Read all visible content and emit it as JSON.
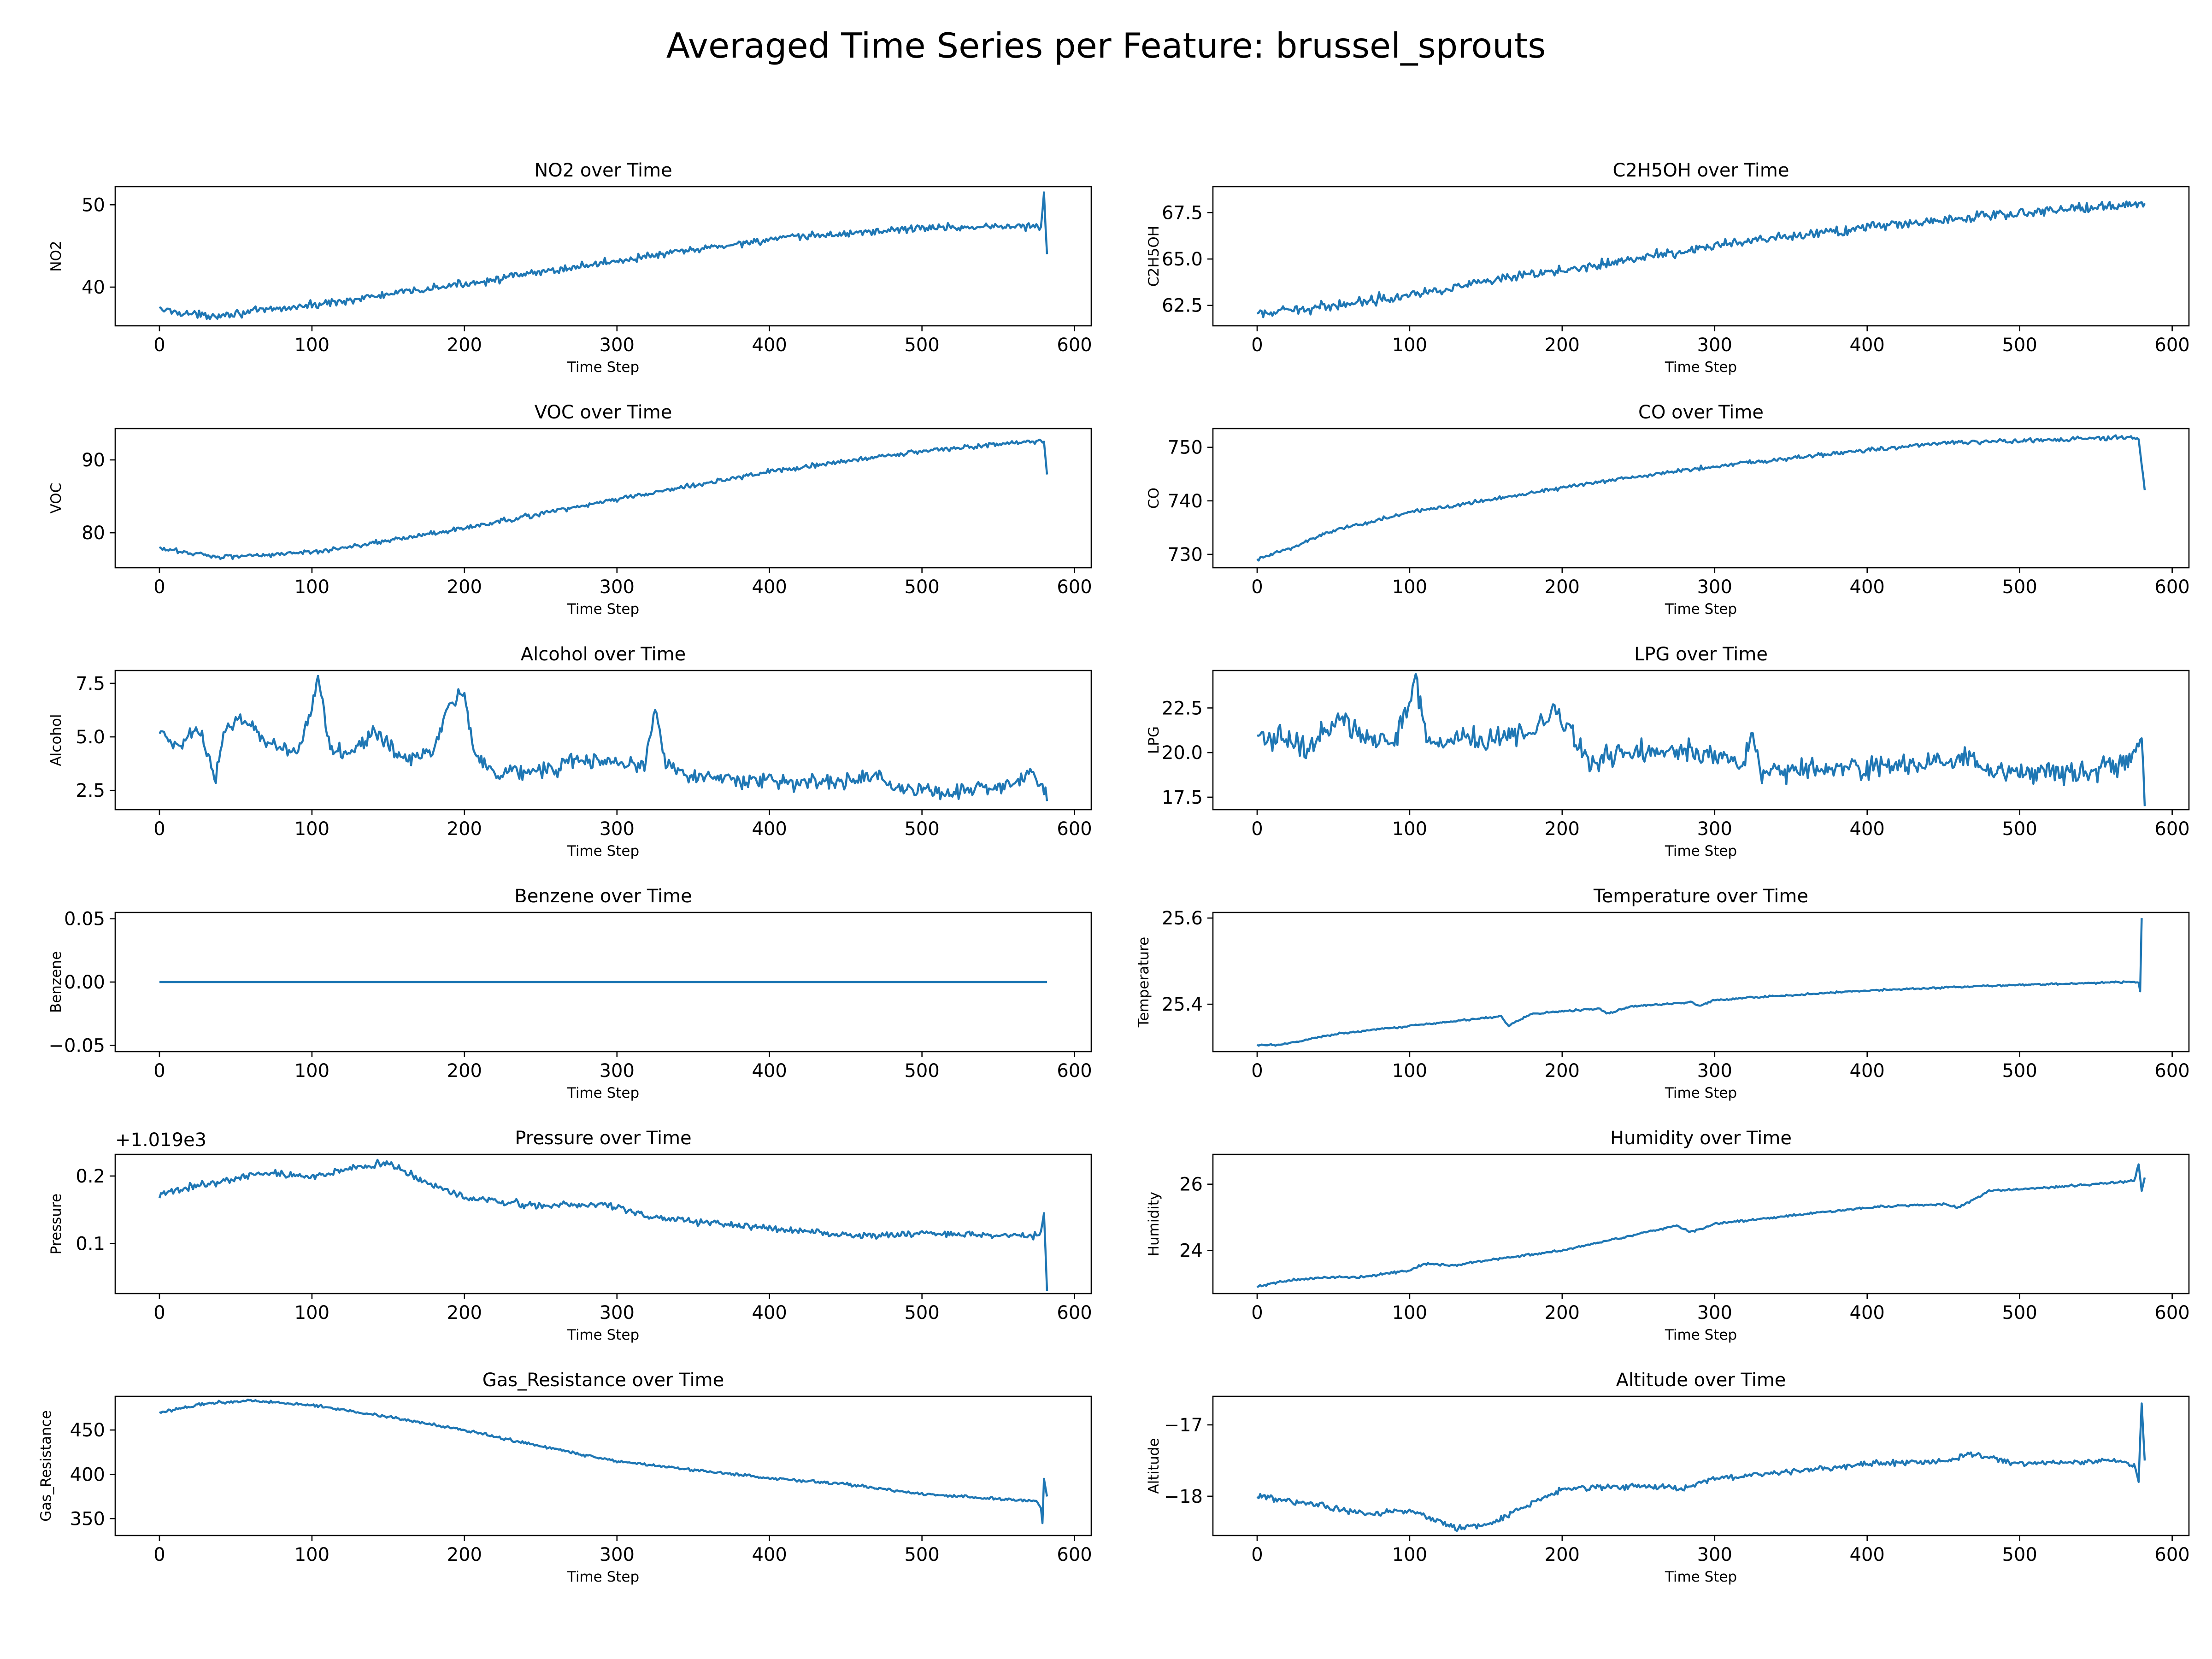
{
  "figure_title": "Averaged Time Series per Feature: brussel_sprouts",
  "colors": {
    "line": "#1f77b4",
    "axes": "#000000",
    "background": "#ffffff"
  },
  "chart_data": [
    {
      "type": "line",
      "title": "NO2 over Time",
      "xlabel": "Time Step",
      "ylabel": "NO2",
      "xlim": [
        -29,
        611
      ],
      "ylim": [
        35.3,
        52.2
      ],
      "xticks": [
        0,
        100,
        200,
        300,
        400,
        500,
        600
      ],
      "yticks": [
        40,
        50
      ],
      "xtick_labels": [
        "0",
        "100",
        "200",
        "300",
        "400",
        "500",
        "600"
      ],
      "ytick_labels": [
        "40",
        "50"
      ],
      "trend": [
        [
          0,
          37.3
        ],
        [
          30,
          36.5
        ],
        [
          60,
          37.0
        ],
        [
          100,
          37.8
        ],
        [
          200,
          40.4
        ],
        [
          300,
          43.2
        ],
        [
          400,
          45.8
        ],
        [
          500,
          47.2
        ],
        [
          560,
          47.4
        ],
        [
          578,
          47.3
        ],
        [
          580,
          51.5
        ],
        [
          582,
          44.0
        ]
      ],
      "noise": 0.35
    },
    {
      "type": "line",
      "title": "C2H5OH over Time",
      "xlabel": "Time Step",
      "ylabel": "C2H5OH",
      "xlim": [
        -29,
        611
      ],
      "ylim": [
        61.4,
        68.9
      ],
      "xticks": [
        0,
        100,
        200,
        300,
        400,
        500,
        600
      ],
      "yticks": [
        62.5,
        65.0,
        67.5
      ],
      "xtick_labels": [
        "0",
        "100",
        "200",
        "300",
        "400",
        "500",
        "600"
      ],
      "ytick_labels": [
        "62.5",
        "65.0",
        "67.5"
      ],
      "trend": [
        [
          0,
          62.0
        ],
        [
          50,
          62.5
        ],
        [
          100,
          63.1
        ],
        [
          200,
          64.4
        ],
        [
          300,
          65.7
        ],
        [
          400,
          66.7
        ],
        [
          500,
          67.5
        ],
        [
          582,
          68.0
        ]
      ],
      "noise": 0.2
    },
    {
      "type": "line",
      "title": "VOC over Time",
      "xlabel": "Time Step",
      "ylabel": "VOC",
      "xlim": [
        -29,
        611
      ],
      "ylim": [
        75.2,
        94.3
      ],
      "xticks": [
        0,
        100,
        200,
        300,
        400,
        500,
        600
      ],
      "yticks": [
        80,
        90
      ],
      "xtick_labels": [
        "0",
        "100",
        "200",
        "300",
        "400",
        "500",
        "600"
      ],
      "ytick_labels": [
        "80",
        "90"
      ],
      "trend": [
        [
          0,
          77.8
        ],
        [
          40,
          76.7
        ],
        [
          100,
          77.3
        ],
        [
          200,
          80.6
        ],
        [
          300,
          84.6
        ],
        [
          400,
          88.4
        ],
        [
          500,
          91.2
        ],
        [
          575,
          92.6
        ],
        [
          580,
          92.5
        ],
        [
          582,
          88.0
        ]
      ],
      "noise": 0.25
    },
    {
      "type": "line",
      "title": "CO over Time",
      "xlabel": "Time Step",
      "ylabel": "CO",
      "xlim": [
        -29,
        611
      ],
      "ylim": [
        727.5,
        753.5
      ],
      "xticks": [
        0,
        100,
        200,
        300,
        400,
        500,
        600
      ],
      "yticks": [
        730,
        740,
        750
      ],
      "xtick_labels": [
        "0",
        "100",
        "200",
        "300",
        "400",
        "500",
        "600"
      ],
      "ytick_labels": [
        "730",
        "740",
        "750"
      ],
      "trend": [
        [
          0,
          729.0
        ],
        [
          20,
          731.0
        ],
        [
          50,
          734.5
        ],
        [
          100,
          737.8
        ],
        [
          200,
          742.5
        ],
        [
          300,
          746.5
        ],
        [
          400,
          749.5
        ],
        [
          450,
          750.8
        ],
        [
          500,
          751.2
        ],
        [
          570,
          751.8
        ],
        [
          578,
          751.5
        ],
        [
          582,
          742.0
        ]
      ],
      "noise": 0.3
    },
    {
      "type": "line",
      "title": "Alcohol over Time",
      "xlabel": "Time Step",
      "ylabel": "Alcohol",
      "xlim": [
        -29,
        611
      ],
      "ylim": [
        1.6,
        8.1
      ],
      "xticks": [
        0,
        100,
        200,
        300,
        400,
        500,
        600
      ],
      "yticks": [
        2.5,
        5.0,
        7.5
      ],
      "xtick_labels": [
        "0",
        "100",
        "200",
        "300",
        "400",
        "500",
        "600"
      ],
      "ytick_labels": [
        "2.5",
        "5.0",
        "7.5"
      ],
      "trend": [
        [
          0,
          5.2
        ],
        [
          10,
          4.5
        ],
        [
          25,
          5.5
        ],
        [
          32,
          4.2
        ],
        [
          37,
          3.0
        ],
        [
          42,
          5.3
        ],
        [
          55,
          5.8
        ],
        [
          70,
          4.8
        ],
        [
          90,
          4.3
        ],
        [
          98,
          5.8
        ],
        [
          104,
          7.8
        ],
        [
          112,
          4.5
        ],
        [
          125,
          4.3
        ],
        [
          140,
          5.2
        ],
        [
          160,
          4.0
        ],
        [
          180,
          4.3
        ],
        [
          190,
          6.5
        ],
        [
          200,
          7.0
        ],
        [
          207,
          4.2
        ],
        [
          220,
          3.3
        ],
        [
          260,
          3.5
        ],
        [
          270,
          3.9
        ],
        [
          300,
          3.8
        ],
        [
          318,
          3.6
        ],
        [
          325,
          6.3
        ],
        [
          332,
          3.8
        ],
        [
          350,
          3.2
        ],
        [
          400,
          2.9
        ],
        [
          450,
          2.9
        ],
        [
          470,
          3.2
        ],
        [
          480,
          2.7
        ],
        [
          520,
          2.4
        ],
        [
          560,
          2.8
        ],
        [
          572,
          3.4
        ],
        [
          578,
          2.8
        ],
        [
          582,
          2.0
        ]
      ],
      "noise": 0.28
    },
    {
      "type": "line",
      "title": "LPG over Time",
      "xlabel": "Time Step",
      "ylabel": "LPG",
      "xlim": [
        -29,
        611
      ],
      "ylim": [
        16.8,
        24.6
      ],
      "xticks": [
        0,
        100,
        200,
        300,
        400,
        500,
        600
      ],
      "yticks": [
        17.5,
        20.0,
        22.5
      ],
      "xtick_labels": [
        "0",
        "100",
        "200",
        "300",
        "400",
        "500",
        "600"
      ],
      "ytick_labels": [
        "17.5",
        "20.0",
        "22.5"
      ],
      "trend": [
        [
          0,
          20.7
        ],
        [
          20,
          20.9
        ],
        [
          32,
          20.0
        ],
        [
          40,
          21.0
        ],
        [
          55,
          22.0
        ],
        [
          70,
          20.8
        ],
        [
          90,
          20.6
        ],
        [
          98,
          22.5
        ],
        [
          104,
          24.0
        ],
        [
          112,
          20.5
        ],
        [
          130,
          20.7
        ],
        [
          150,
          20.8
        ],
        [
          180,
          21.0
        ],
        [
          195,
          22.3
        ],
        [
          205,
          21.5
        ],
        [
          215,
          19.5
        ],
        [
          240,
          20.0
        ],
        [
          270,
          20.3
        ],
        [
          300,
          19.8
        ],
        [
          320,
          19.5
        ],
        [
          325,
          21.3
        ],
        [
          330,
          18.8
        ],
        [
          360,
          19.1
        ],
        [
          400,
          19.1
        ],
        [
          440,
          19.4
        ],
        [
          460,
          19.7
        ],
        [
          480,
          18.9
        ],
        [
          540,
          18.8
        ],
        [
          570,
          19.4
        ],
        [
          577,
          20.5
        ],
        [
          580,
          20.8
        ],
        [
          582,
          17.0
        ]
      ],
      "noise": 0.48
    },
    {
      "type": "line",
      "title": "Benzene over Time",
      "xlabel": "Time Step",
      "ylabel": "Benzene",
      "xlim": [
        -29,
        611
      ],
      "ylim": [
        -0.055,
        0.055
      ],
      "xticks": [
        0,
        100,
        200,
        300,
        400,
        500,
        600
      ],
      "yticks": [
        -0.05,
        0.0,
        0.05
      ],
      "xtick_labels": [
        "0",
        "100",
        "200",
        "300",
        "400",
        "500",
        "600"
      ],
      "ytick_labels": [
        "−0.05",
        "0.00",
        "0.05"
      ],
      "trend": [
        [
          0,
          0.0
        ],
        [
          582,
          0.0
        ]
      ],
      "noise": 0
    },
    {
      "type": "line",
      "title": "Temperature over Time",
      "xlabel": "Time Step",
      "ylabel": "Temperature",
      "xlim": [
        -29,
        611
      ],
      "ylim": [
        25.29,
        25.613
      ],
      "xticks": [
        0,
        100,
        200,
        300,
        400,
        500,
        600
      ],
      "yticks": [
        25.4,
        25.6
      ],
      "xtick_labels": [
        "0",
        "100",
        "200",
        "300",
        "400",
        "500",
        "600"
      ],
      "ytick_labels": [
        "25.4",
        "25.6"
      ],
      "trend": [
        [
          0,
          25.305
        ],
        [
          15,
          25.305
        ],
        [
          50,
          25.33
        ],
        [
          100,
          25.35
        ],
        [
          160,
          25.372
        ],
        [
          165,
          25.35
        ],
        [
          180,
          25.378
        ],
        [
          225,
          25.39
        ],
        [
          230,
          25.378
        ],
        [
          245,
          25.395
        ],
        [
          285,
          25.405
        ],
        [
          290,
          25.395
        ],
        [
          300,
          25.41
        ],
        [
          400,
          25.432
        ],
        [
          500,
          25.445
        ],
        [
          575,
          25.452
        ],
        [
          578,
          25.45
        ],
        [
          579,
          25.43
        ],
        [
          580,
          25.6
        ]
      ],
      "noise": 0.0015
    },
    {
      "type": "line",
      "title": "Pressure over Time",
      "xlabel": "Time Step",
      "ylabel": "Pressure",
      "offset_text": "+1.019e3",
      "xlim": [
        -29,
        611
      ],
      "ylim": [
        0.026,
        0.232
      ],
      "xticks": [
        0,
        100,
        200,
        300,
        400,
        500,
        600
      ],
      "yticks": [
        0.1,
        0.2
      ],
      "xtick_labels": [
        "0",
        "100",
        "200",
        "300",
        "400",
        "500",
        "600"
      ],
      "ytick_labels": [
        "0.1",
        "0.2"
      ],
      "trend": [
        [
          0,
          0.172
        ],
        [
          30,
          0.188
        ],
        [
          70,
          0.205
        ],
        [
          100,
          0.198
        ],
        [
          130,
          0.215
        ],
        [
          150,
          0.218
        ],
        [
          175,
          0.19
        ],
        [
          200,
          0.168
        ],
        [
          250,
          0.155
        ],
        [
          290,
          0.16
        ],
        [
          320,
          0.14
        ],
        [
          400,
          0.122
        ],
        [
          460,
          0.11
        ],
        [
          500,
          0.115
        ],
        [
          575,
          0.112
        ],
        [
          578,
          0.118
        ],
        [
          580,
          0.145
        ],
        [
          582,
          0.03
        ]
      ],
      "noise": 0.004
    },
    {
      "type": "line",
      "title": "Humidity over Time",
      "xlabel": "Time Step",
      "ylabel": "Humidity",
      "xlim": [
        -29,
        611
      ],
      "ylim": [
        22.7,
        26.9
      ],
      "xticks": [
        0,
        100,
        200,
        300,
        400,
        500,
        600
      ],
      "yticks": [
        24,
        26
      ],
      "xtick_labels": [
        "0",
        "100",
        "200",
        "300",
        "400",
        "500",
        "600"
      ],
      "ytick_labels": [
        "24",
        "26"
      ],
      "trend": [
        [
          0,
          22.9
        ],
        [
          20,
          23.1
        ],
        [
          50,
          23.2
        ],
        [
          70,
          23.2
        ],
        [
          100,
          23.4
        ],
        [
          110,
          23.6
        ],
        [
          130,
          23.55
        ],
        [
          150,
          23.7
        ],
        [
          200,
          24.0
        ],
        [
          240,
          24.4
        ],
        [
          275,
          24.75
        ],
        [
          285,
          24.55
        ],
        [
          300,
          24.8
        ],
        [
          350,
          25.05
        ],
        [
          400,
          25.3
        ],
        [
          450,
          25.4
        ],
        [
          460,
          25.3
        ],
        [
          480,
          25.8
        ],
        [
          500,
          25.85
        ],
        [
          550,
          26.0
        ],
        [
          575,
          26.1
        ],
        [
          578,
          26.6
        ],
        [
          580,
          25.8
        ],
        [
          582,
          26.2
        ]
      ],
      "noise": 0.025
    },
    {
      "type": "line",
      "title": "Gas_Resistance over Time",
      "xlabel": "Time Step",
      "ylabel": "Gas_Resistance",
      "xlim": [
        -29,
        611
      ],
      "ylim": [
        331,
        488
      ],
      "xticks": [
        0,
        100,
        200,
        300,
        400,
        500,
        600
      ],
      "yticks": [
        350,
        400,
        450
      ],
      "xtick_labels": [
        "0",
        "100",
        "200",
        "300",
        "400",
        "500",
        "600"
      ],
      "ytick_labels": [
        "350",
        "400",
        "450"
      ],
      "trend": [
        [
          0,
          470
        ],
        [
          30,
          480
        ],
        [
          60,
          483
        ],
        [
          100,
          478
        ],
        [
          150,
          465
        ],
        [
          200,
          450
        ],
        [
          250,
          432
        ],
        [
          300,
          415
        ],
        [
          350,
          405
        ],
        [
          400,
          396
        ],
        [
          450,
          389
        ],
        [
          500,
          378
        ],
        [
          550,
          372
        ],
        [
          575,
          370
        ],
        [
          578,
          362
        ],
        [
          579,
          345
        ],
        [
          580,
          395
        ],
        [
          582,
          375
        ]
      ],
      "noise": 1.2
    },
    {
      "type": "line",
      "title": "Altitude over Time",
      "xlabel": "Time Step",
      "ylabel": "Altitude",
      "xlim": [
        -29,
        611
      ],
      "ylim": [
        -18.55,
        -16.6
      ],
      "xticks": [
        0,
        100,
        200,
        300,
        400,
        500,
        600
      ],
      "yticks": [
        -18,
        -17
      ],
      "xtick_labels": [
        "0",
        "100",
        "200",
        "300",
        "400",
        "500",
        "600"
      ],
      "ytick_labels": [
        "−18",
        "−17"
      ],
      "trend": [
        [
          0,
          -18.0
        ],
        [
          40,
          -18.12
        ],
        [
          70,
          -18.25
        ],
        [
          100,
          -18.2
        ],
        [
          130,
          -18.45
        ],
        [
          150,
          -18.4
        ],
        [
          170,
          -18.2
        ],
        [
          200,
          -17.9
        ],
        [
          250,
          -17.85
        ],
        [
          280,
          -17.9
        ],
        [
          300,
          -17.75
        ],
        [
          350,
          -17.65
        ],
        [
          400,
          -17.55
        ],
        [
          450,
          -17.5
        ],
        [
          470,
          -17.4
        ],
        [
          500,
          -17.55
        ],
        [
          560,
          -17.5
        ],
        [
          575,
          -17.55
        ],
        [
          578,
          -17.8
        ],
        [
          580,
          -16.7
        ],
        [
          582,
          -17.5
        ]
      ],
      "noise": 0.03
    }
  ]
}
